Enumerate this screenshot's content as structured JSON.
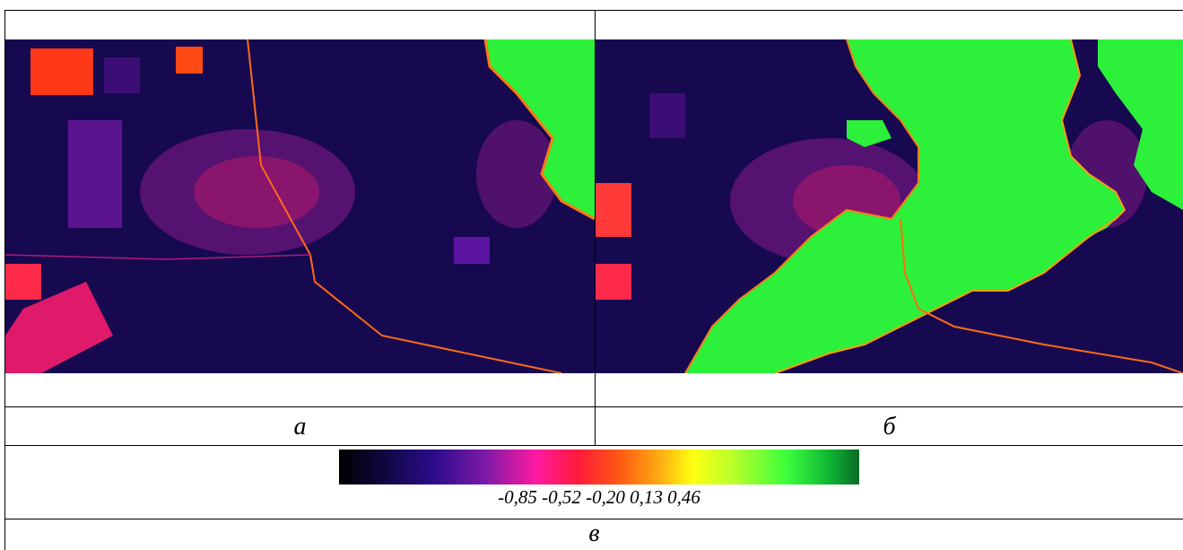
{
  "panels": {
    "a": {
      "caption": "а"
    },
    "b": {
      "caption": "б"
    }
  },
  "colorbar": {
    "labels": "-0,85 -0,52 -0,20 0,13 0,46",
    "colors": [
      "#000000",
      "#2a0c8a",
      "#ff1aa0",
      "#ff1a3a",
      "#ffb012",
      "#ffff12",
      "#3cff3c",
      "#0a6a24"
    ]
  },
  "figure_caption": "в"
}
